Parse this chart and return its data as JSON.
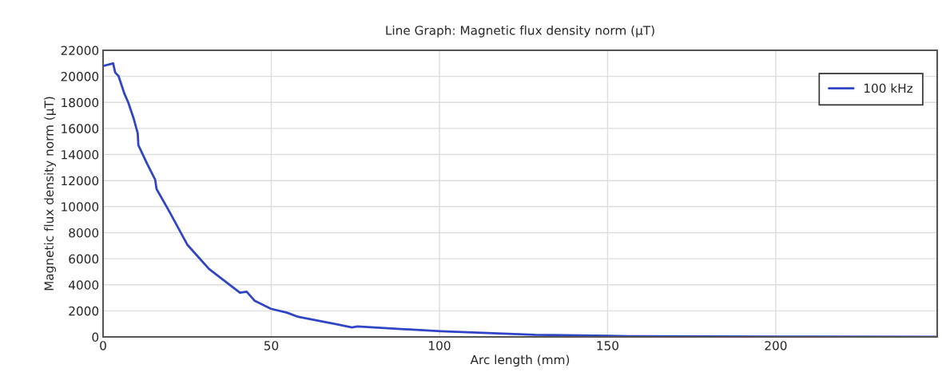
{
  "chart_data": {
    "type": "line",
    "title": "Line Graph: Magnetic flux density norm (µT)",
    "xlabel": "Arc length (mm)",
    "ylabel": "Magnetic flux density norm (µT)",
    "series": [
      {
        "name": "100 kHz",
        "color": "#2f45c4",
        "x": [
          0,
          3.0,
          3.6,
          4.6,
          6.3,
          7.5,
          9.1,
          10.3,
          10.5,
          13.1,
          15.5,
          15.9,
          19.5,
          25.1,
          31.5,
          40.7,
          42.7,
          45.1,
          49.9,
          54.7,
          57.9,
          58.7,
          70.0,
          74.0,
          75.6,
          100.4,
          128.4,
          156.5,
          200,
          248
        ],
        "values": [
          20800,
          21000,
          20290,
          20020,
          18700,
          17990,
          16760,
          15630,
          14720,
          13290,
          12060,
          11350,
          9720,
          7060,
          5220,
          3390,
          3470,
          2770,
          2160,
          1860,
          1550,
          1510,
          940,
          730,
          800,
          430,
          165,
          60,
          20,
          10
        ]
      }
    ],
    "xlim": [
      0,
      248
    ],
    "xticks": [
      0,
      50,
      100,
      150,
      200
    ],
    "ylim": [
      0,
      22000
    ],
    "yticks": [
      0,
      2000,
      4000,
      6000,
      8000,
      10000,
      12000,
      14000,
      16000,
      18000,
      20000,
      22000
    ],
    "grid": true,
    "legend": "top right",
    "line_style": "solid",
    "marker": "none"
  }
}
